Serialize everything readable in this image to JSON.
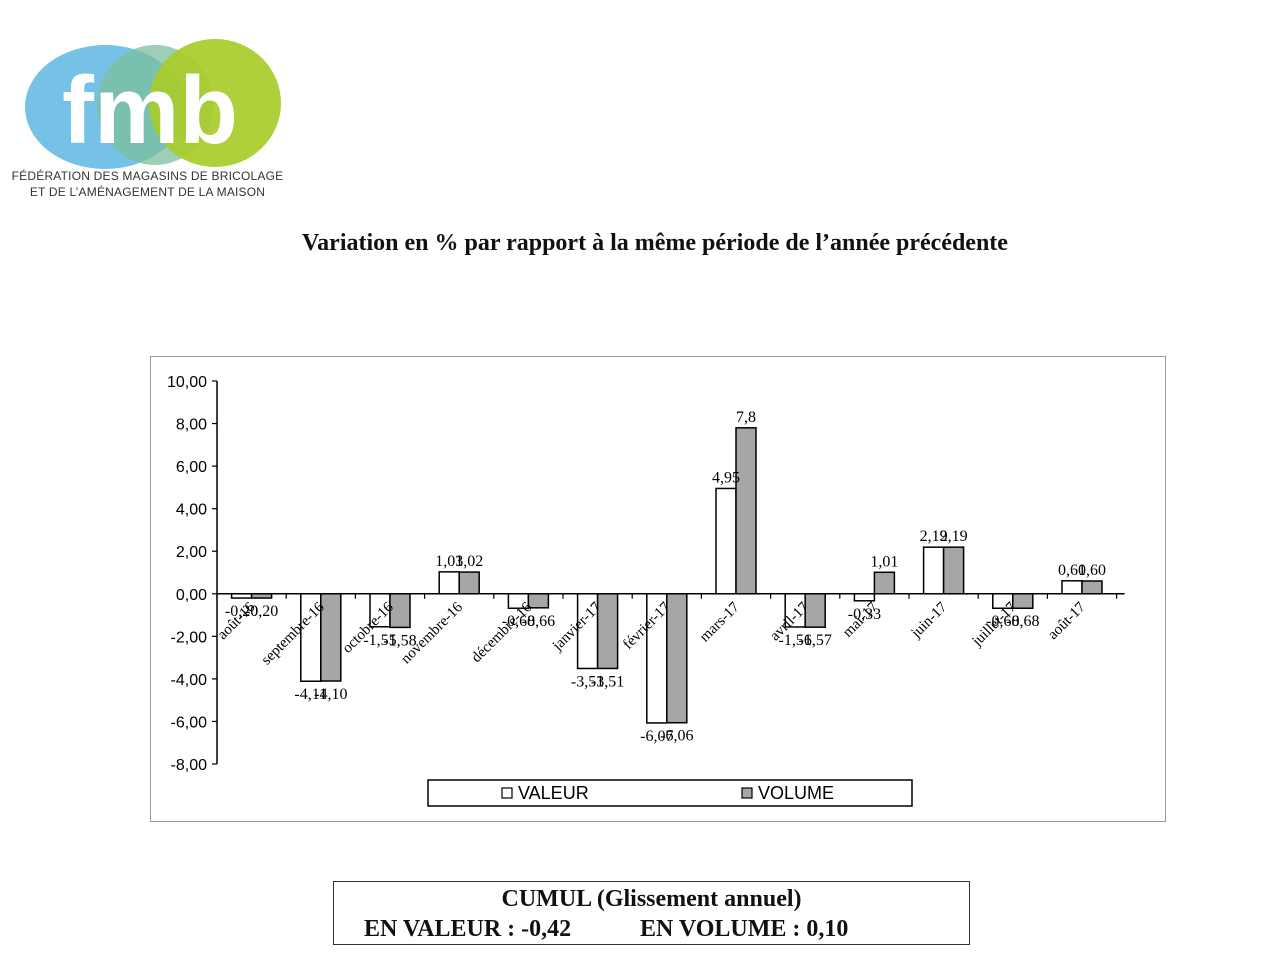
{
  "logo": {
    "wordmark": "fmb",
    "caption_line1": "FÉDÉRATION DES MAGASINS DE BRICOLAGE",
    "caption_line2": "ET DE L’AMÉNAGEMENT DE LA MAISON",
    "colors": {
      "blue": "#6fbfe6",
      "green": "#8cc9a6",
      "lime": "#a8cc2a",
      "text": "#ffffff"
    }
  },
  "page_title": "Variation en % par rapport à la même période de l’année précédente",
  "chart_data": {
    "type": "bar",
    "categories": [
      "août-16",
      "septembre-16",
      "octobre-16",
      "novembre-16",
      "décembre-16",
      "janvier-17",
      "février-17",
      "mars-17",
      "avril-17",
      "mai-17",
      "juin-17",
      "juillet-17",
      "août-17"
    ],
    "series": [
      {
        "name": "VALEUR",
        "color": "#ffffff",
        "values": [
          -0.2,
          -4.11,
          -1.55,
          1.03,
          -0.68,
          -3.51,
          -6.07,
          4.95,
          -1.56,
          -0.33,
          2.19,
          -0.68,
          0.61
        ]
      },
      {
        "name": "VOLUME",
        "color": "#a6a6a6",
        "values": [
          -0.2,
          -4.1,
          -1.58,
          1.02,
          -0.66,
          -3.51,
          -6.06,
          7.8,
          -1.57,
          1.01,
          2.19,
          -0.68,
          0.6
        ]
      }
    ],
    "value_labels": {
      "VALEUR": [
        "-0,20",
        "-4,11",
        "-1,55",
        "1,03",
        "-0,68",
        "-3,51",
        "-6,07",
        "4,95",
        "-1,56",
        "-0,33",
        "2,19",
        "-0,68",
        "0,61"
      ],
      "VOLUME": [
        "-0,20",
        "-4,10",
        "-1,58",
        "1,02",
        "-0,66",
        "-3,51",
        "-6,06",
        "7,8",
        "-1,57",
        "1,01",
        "2,19",
        "-0,68",
        "0,60"
      ]
    },
    "ylim": [
      -8,
      10
    ],
    "yticks": [
      10,
      8,
      6,
      4,
      2,
      0,
      -2,
      -4,
      -6,
      -8
    ],
    "ytick_labels": [
      "10,00",
      "8,00",
      "6,00",
      "4,00",
      "2,00",
      "0,00",
      "-2,00",
      "-4,00",
      "-6,00",
      "-8,00"
    ],
    "grid": false,
    "legend": "bottom",
    "title": "",
    "xlabel": "",
    "ylabel": ""
  },
  "cumul": {
    "title": "CUMUL (Glissement annuel)",
    "valeur": "EN VALEUR : -0,42",
    "volume": "EN VOLUME : 0,10"
  }
}
